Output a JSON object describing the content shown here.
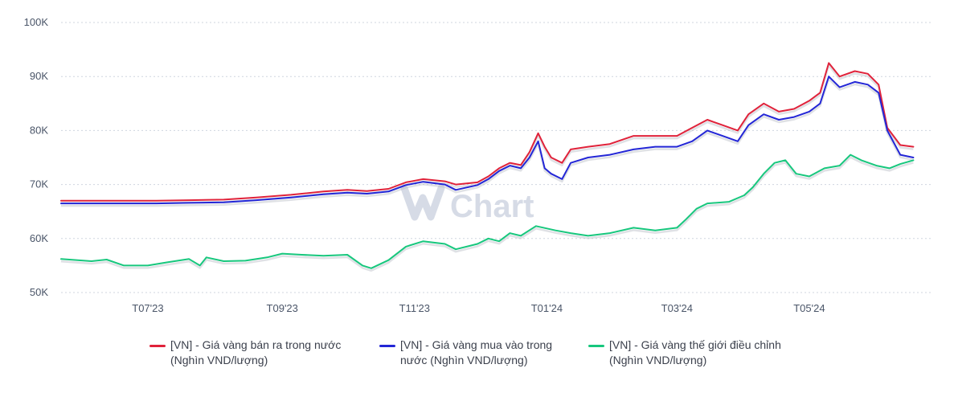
{
  "chart_data": {
    "type": "line",
    "watermark": "Chart",
    "y_ticks": [
      "50K",
      "60K",
      "70K",
      "80K",
      "90K",
      "100K"
    ],
    "y_tick_values": [
      50,
      60,
      70,
      80,
      90,
      100
    ],
    "ylim": [
      50,
      100
    ],
    "x_ticks": [
      {
        "label": "T07'23",
        "date": "2023-07-01"
      },
      {
        "label": "T09'23",
        "date": "2023-09-01"
      },
      {
        "label": "T11'23",
        "date": "2023-11-01"
      },
      {
        "label": "T01'24",
        "date": "2024-01-01"
      },
      {
        "label": "T03'24",
        "date": "2024-03-01"
      },
      {
        "label": "T05'24",
        "date": "2024-05-01"
      }
    ],
    "xlim": [
      "2023-05-22",
      "2024-06-26"
    ],
    "grid": true,
    "legend_position": "bottom",
    "series": [
      {
        "name": "[VN] - Giá vàng bán ra trong nước\n(Nghìn VND/lượng)",
        "color": "#e0223a",
        "points": [
          [
            "2023-05-22",
            67.0
          ],
          [
            "2023-06-05",
            67.0
          ],
          [
            "2023-06-20",
            67.0
          ],
          [
            "2023-07-05",
            67.0
          ],
          [
            "2023-07-20",
            67.1
          ],
          [
            "2023-08-05",
            67.2
          ],
          [
            "2023-08-20",
            67.6
          ],
          [
            "2023-09-05",
            68.1
          ],
          [
            "2023-09-20",
            68.7
          ],
          [
            "2023-10-01",
            69.0
          ],
          [
            "2023-10-10",
            68.8
          ],
          [
            "2023-10-20",
            69.2
          ],
          [
            "2023-10-28",
            70.4
          ],
          [
            "2023-11-05",
            71.0
          ],
          [
            "2023-11-15",
            70.6
          ],
          [
            "2023-11-20",
            70.0
          ],
          [
            "2023-11-30",
            70.4
          ],
          [
            "2023-12-05",
            71.5
          ],
          [
            "2023-12-10",
            73.0
          ],
          [
            "2023-12-15",
            74.0
          ],
          [
            "2023-12-20",
            73.6
          ],
          [
            "2023-12-24",
            76.0
          ],
          [
            "2023-12-28",
            79.5
          ],
          [
            "2023-12-31",
            77.0
          ],
          [
            "2024-01-03",
            75.0
          ],
          [
            "2024-01-08",
            74.0
          ],
          [
            "2024-01-12",
            76.5
          ],
          [
            "2024-01-20",
            77.0
          ],
          [
            "2024-01-30",
            77.5
          ],
          [
            "2024-02-10",
            79.0
          ],
          [
            "2024-02-20",
            79.0
          ],
          [
            "2024-03-01",
            79.0
          ],
          [
            "2024-03-08",
            80.5
          ],
          [
            "2024-03-15",
            82.0
          ],
          [
            "2024-03-22",
            81.0
          ],
          [
            "2024-03-29",
            80.0
          ],
          [
            "2024-04-03",
            83.0
          ],
          [
            "2024-04-10",
            85.0
          ],
          [
            "2024-04-17",
            83.5
          ],
          [
            "2024-04-24",
            84.0
          ],
          [
            "2024-05-01",
            85.5
          ],
          [
            "2024-05-06",
            87.0
          ],
          [
            "2024-05-10",
            92.5
          ],
          [
            "2024-05-15",
            90.0
          ],
          [
            "2024-05-22",
            91.0
          ],
          [
            "2024-05-28",
            90.5
          ],
          [
            "2024-06-02",
            88.5
          ],
          [
            "2024-06-06",
            80.5
          ],
          [
            "2024-06-12",
            77.3
          ],
          [
            "2024-06-18",
            77.0
          ]
        ]
      },
      {
        "name": "[VN] - Giá vàng mua vào trong\nnước (Nghìn VND/lượng)",
        "color": "#2326d6",
        "points": [
          [
            "2023-05-22",
            66.5
          ],
          [
            "2023-06-05",
            66.5
          ],
          [
            "2023-06-20",
            66.5
          ],
          [
            "2023-07-05",
            66.5
          ],
          [
            "2023-07-20",
            66.6
          ],
          [
            "2023-08-05",
            66.7
          ],
          [
            "2023-08-20",
            67.1
          ],
          [
            "2023-09-05",
            67.6
          ],
          [
            "2023-09-20",
            68.2
          ],
          [
            "2023-10-01",
            68.5
          ],
          [
            "2023-10-10",
            68.3
          ],
          [
            "2023-10-20",
            68.7
          ],
          [
            "2023-10-28",
            69.9
          ],
          [
            "2023-11-05",
            70.5
          ],
          [
            "2023-11-15",
            70.0
          ],
          [
            "2023-11-20",
            69.0
          ],
          [
            "2023-11-30",
            69.9
          ],
          [
            "2023-12-05",
            71.0
          ],
          [
            "2023-12-10",
            72.5
          ],
          [
            "2023-12-15",
            73.5
          ],
          [
            "2023-12-20",
            73.0
          ],
          [
            "2023-12-24",
            75.0
          ],
          [
            "2023-12-28",
            78.0
          ],
          [
            "2023-12-31",
            73.0
          ],
          [
            "2024-01-03",
            72.0
          ],
          [
            "2024-01-08",
            71.0
          ],
          [
            "2024-01-12",
            74.0
          ],
          [
            "2024-01-20",
            75.0
          ],
          [
            "2024-01-30",
            75.5
          ],
          [
            "2024-02-10",
            76.5
          ],
          [
            "2024-02-20",
            77.0
          ],
          [
            "2024-03-01",
            77.0
          ],
          [
            "2024-03-08",
            78.0
          ],
          [
            "2024-03-15",
            80.0
          ],
          [
            "2024-03-22",
            79.0
          ],
          [
            "2024-03-29",
            78.0
          ],
          [
            "2024-04-03",
            81.0
          ],
          [
            "2024-04-10",
            83.0
          ],
          [
            "2024-04-17",
            82.0
          ],
          [
            "2024-04-24",
            82.5
          ],
          [
            "2024-05-01",
            83.5
          ],
          [
            "2024-05-06",
            85.0
          ],
          [
            "2024-05-10",
            90.0
          ],
          [
            "2024-05-15",
            88.0
          ],
          [
            "2024-05-22",
            89.0
          ],
          [
            "2024-05-28",
            88.5
          ],
          [
            "2024-06-02",
            87.0
          ],
          [
            "2024-06-06",
            80.0
          ],
          [
            "2024-06-12",
            75.5
          ],
          [
            "2024-06-18",
            75.0
          ]
        ]
      },
      {
        "name": "[VN] - Giá vàng thế giới điều chỉnh\n(Nghìn VND/lượng)",
        "color": "#17c77d",
        "points": [
          [
            "2023-05-22",
            56.2
          ],
          [
            "2023-06-05",
            55.8
          ],
          [
            "2023-06-12",
            56.1
          ],
          [
            "2023-06-20",
            55.0
          ],
          [
            "2023-07-01",
            55.0
          ],
          [
            "2023-07-10",
            55.6
          ],
          [
            "2023-07-20",
            56.2
          ],
          [
            "2023-07-25",
            55.0
          ],
          [
            "2023-07-28",
            56.5
          ],
          [
            "2023-08-05",
            55.8
          ],
          [
            "2023-08-15",
            55.9
          ],
          [
            "2023-08-25",
            56.5
          ],
          [
            "2023-09-01",
            57.2
          ],
          [
            "2023-09-10",
            57.0
          ],
          [
            "2023-09-20",
            56.8
          ],
          [
            "2023-10-01",
            57.0
          ],
          [
            "2023-10-08",
            55.0
          ],
          [
            "2023-10-12",
            54.5
          ],
          [
            "2023-10-20",
            56.0
          ],
          [
            "2023-10-28",
            58.5
          ],
          [
            "2023-11-05",
            59.5
          ],
          [
            "2023-11-15",
            59.0
          ],
          [
            "2023-11-20",
            58.0
          ],
          [
            "2023-11-30",
            59.0
          ],
          [
            "2023-12-05",
            60.0
          ],
          [
            "2023-12-10",
            59.5
          ],
          [
            "2023-12-15",
            61.0
          ],
          [
            "2023-12-20",
            60.5
          ],
          [
            "2023-12-27",
            62.3
          ],
          [
            "2024-01-05",
            61.5
          ],
          [
            "2024-01-12",
            61.0
          ],
          [
            "2024-01-20",
            60.5
          ],
          [
            "2024-01-30",
            61.0
          ],
          [
            "2024-02-10",
            62.0
          ],
          [
            "2024-02-20",
            61.5
          ],
          [
            "2024-03-01",
            62.0
          ],
          [
            "2024-03-05",
            63.5
          ],
          [
            "2024-03-10",
            65.5
          ],
          [
            "2024-03-15",
            66.5
          ],
          [
            "2024-03-25",
            66.8
          ],
          [
            "2024-04-01",
            68.0
          ],
          [
            "2024-04-05",
            69.5
          ],
          [
            "2024-04-10",
            72.0
          ],
          [
            "2024-04-15",
            74.0
          ],
          [
            "2024-04-20",
            74.5
          ],
          [
            "2024-04-25",
            72.0
          ],
          [
            "2024-05-01",
            71.5
          ],
          [
            "2024-05-08",
            73.0
          ],
          [
            "2024-05-15",
            73.5
          ],
          [
            "2024-05-20",
            75.5
          ],
          [
            "2024-05-25",
            74.5
          ],
          [
            "2024-06-01",
            73.5
          ],
          [
            "2024-06-07",
            73.0
          ],
          [
            "2024-06-12",
            73.8
          ],
          [
            "2024-06-18",
            74.5
          ]
        ]
      }
    ]
  }
}
